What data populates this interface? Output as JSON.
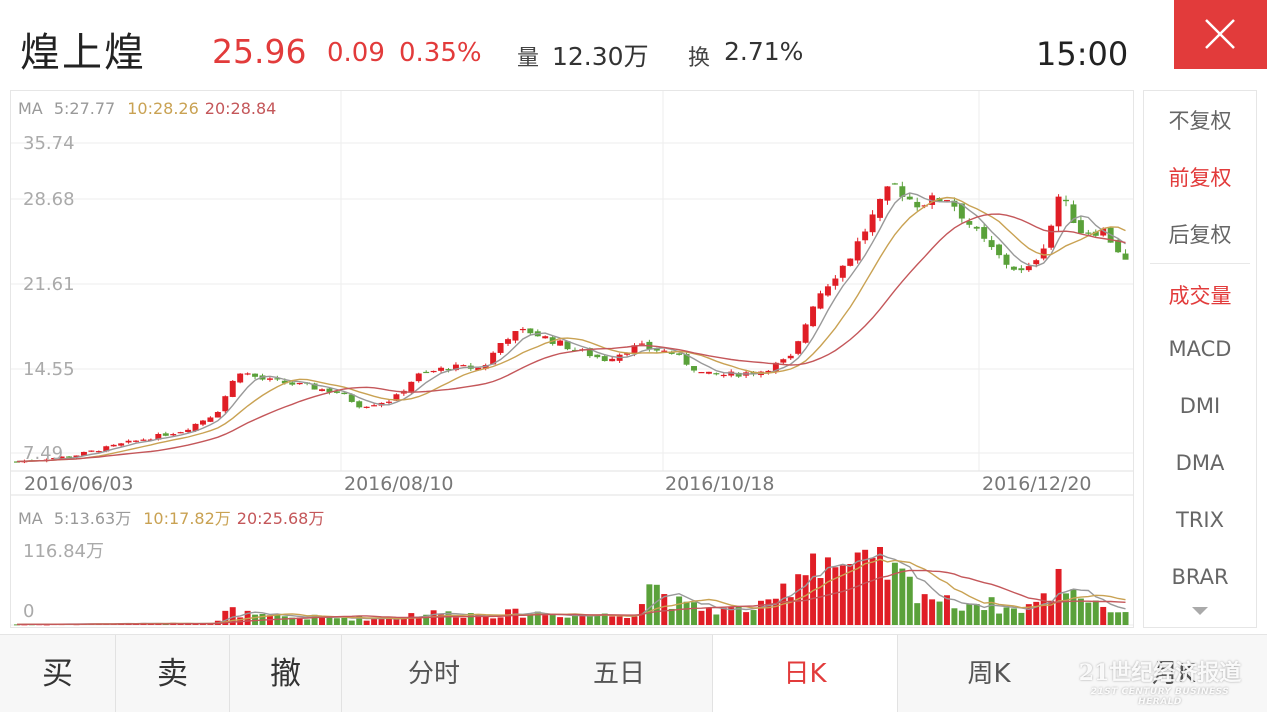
{
  "header": {
    "stock_name": "煌上煌",
    "price": "25.96",
    "change": "0.09",
    "change_pct": "0.35%",
    "volume_label": "量",
    "volume_value": "12.30万",
    "turnover_label": "换",
    "turnover_value": "2.71%",
    "time": "15:00",
    "close_icon": "close-icon"
  },
  "colors": {
    "up": "#e01e26",
    "down": "#5aa13a",
    "accent": "#e23b3b",
    "ma5": "#999999",
    "ma10": "#c9a253",
    "ma20": "#c4575a"
  },
  "price_panel": {
    "ma_legend": {
      "prefix": "MA",
      "ma5": "5:27.77",
      "ma10": "10:28.26",
      "ma20": "20:28.84"
    },
    "y_labels": [
      "35.74",
      "28.68",
      "21.61",
      "14.55",
      "7.49"
    ],
    "date_labels": [
      "2016/06/03",
      "2016/08/10",
      "2016/10/18",
      "2016/12/20"
    ]
  },
  "volume_panel": {
    "ma_legend": {
      "prefix": "MA",
      "ma5": "5:13.63万",
      "ma10": "10:17.82万",
      "ma20": "20:25.68万"
    },
    "y_labels": [
      "116.84万",
      "0"
    ]
  },
  "right_panel": {
    "items": [
      {
        "label": "不复权",
        "active": false
      },
      {
        "label": "前复权",
        "active": true
      },
      {
        "label": "后复权",
        "active": false
      },
      {
        "label": "成交量",
        "active": true
      },
      {
        "label": "MACD",
        "active": false
      },
      {
        "label": "DMI",
        "active": false
      },
      {
        "label": "DMA",
        "active": false
      },
      {
        "label": "TRIX",
        "active": false
      },
      {
        "label": "BRAR",
        "active": false
      }
    ],
    "more_icon": "chevron-down-icon"
  },
  "bottom_bar": {
    "trade_buttons": [
      "买",
      "卖",
      "撤"
    ],
    "tabs": [
      {
        "label": "分时",
        "active": false
      },
      {
        "label": "五日",
        "active": false
      },
      {
        "label": "日K",
        "active": true
      },
      {
        "label": "周K",
        "active": false
      },
      {
        "label": "月K",
        "active": false
      }
    ]
  },
  "watermark": {
    "cn": "21世纪经济报道",
    "en": "21ST CENTURY BUSINESS HERALD"
  },
  "chart_data": {
    "type": "candlestick",
    "x_axis_dates": [
      "2016/06/03",
      "2016/08/10",
      "2016/10/18",
      "2016/12/20"
    ],
    "price_ylim": [
      7.49,
      35.74
    ],
    "price_series_keypoints": [
      {
        "t": 0,
        "close": 7.8
      },
      {
        "t": 0.05,
        "close": 8.3
      },
      {
        "t": 0.1,
        "close": 9.5
      },
      {
        "t": 0.15,
        "close": 10.6
      },
      {
        "t": 0.18,
        "close": 12.2
      },
      {
        "t": 0.2,
        "close": 16.0
      },
      {
        "t": 0.22,
        "close": 15.2
      },
      {
        "t": 0.26,
        "close": 14.6
      },
      {
        "t": 0.29,
        "close": 14.0
      },
      {
        "t": 0.31,
        "close": 12.8
      },
      {
        "t": 0.34,
        "close": 13.4
      },
      {
        "t": 0.36,
        "close": 15.5
      },
      {
        "t": 0.39,
        "close": 16.3
      },
      {
        "t": 0.42,
        "close": 16.2
      },
      {
        "t": 0.44,
        "close": 19.0
      },
      {
        "t": 0.46,
        "close": 19.6
      },
      {
        "t": 0.5,
        "close": 18.0
      },
      {
        "t": 0.53,
        "close": 17.0
      },
      {
        "t": 0.56,
        "close": 18.2
      },
      {
        "t": 0.59,
        "close": 17.6
      },
      {
        "t": 0.62,
        "close": 15.6
      },
      {
        "t": 0.64,
        "close": 15.6
      },
      {
        "t": 0.67,
        "close": 15.9
      },
      {
        "t": 0.7,
        "close": 17.2
      },
      {
        "t": 0.72,
        "close": 22.5
      },
      {
        "t": 0.75,
        "close": 26.0
      },
      {
        "t": 0.77,
        "close": 29.5
      },
      {
        "t": 0.79,
        "close": 32.8
      },
      {
        "t": 0.81,
        "close": 31.0
      },
      {
        "t": 0.84,
        "close": 31.6
      },
      {
        "t": 0.87,
        "close": 27.8
      },
      {
        "t": 0.89,
        "close": 25.8
      },
      {
        "t": 0.91,
        "close": 24.6
      },
      {
        "t": 0.93,
        "close": 28.0
      },
      {
        "t": 0.94,
        "close": 31.8
      },
      {
        "t": 0.96,
        "close": 28.5
      },
      {
        "t": 0.98,
        "close": 28.6
      },
      {
        "t": 1.0,
        "close": 25.96
      }
    ],
    "ma_values_last": {
      "ma5": 27.77,
      "ma10": 28.26,
      "ma20": 28.84
    },
    "volume_ylim": [
      0,
      116.84
    ],
    "volume_unit": "万",
    "volume_keypoints": [
      {
        "t": 0,
        "vol": 1
      },
      {
        "t": 0.18,
        "vol": 3
      },
      {
        "t": 0.19,
        "vol": 22
      },
      {
        "t": 0.22,
        "vol": 12
      },
      {
        "t": 0.34,
        "vol": 10
      },
      {
        "t": 0.36,
        "vol": 18
      },
      {
        "t": 0.42,
        "vol": 16
      },
      {
        "t": 0.46,
        "vol": 18
      },
      {
        "t": 0.54,
        "vol": 14
      },
      {
        "t": 0.56,
        "vol": 20
      },
      {
        "t": 0.57,
        "vol": 66
      },
      {
        "t": 0.6,
        "vol": 28
      },
      {
        "t": 0.64,
        "vol": 22
      },
      {
        "t": 0.68,
        "vol": 28
      },
      {
        "t": 0.7,
        "vol": 70
      },
      {
        "t": 0.72,
        "vol": 112
      },
      {
        "t": 0.75,
        "vol": 82
      },
      {
        "t": 0.78,
        "vol": 88
      },
      {
        "t": 0.81,
        "vol": 56
      },
      {
        "t": 0.84,
        "vol": 32
      },
      {
        "t": 0.87,
        "vol": 34
      },
      {
        "t": 0.9,
        "vol": 22
      },
      {
        "t": 0.93,
        "vol": 40
      },
      {
        "t": 0.94,
        "vol": 72
      },
      {
        "t": 0.96,
        "vol": 46
      },
      {
        "t": 0.98,
        "vol": 30
      },
      {
        "t": 1.0,
        "vol": 14
      }
    ]
  }
}
